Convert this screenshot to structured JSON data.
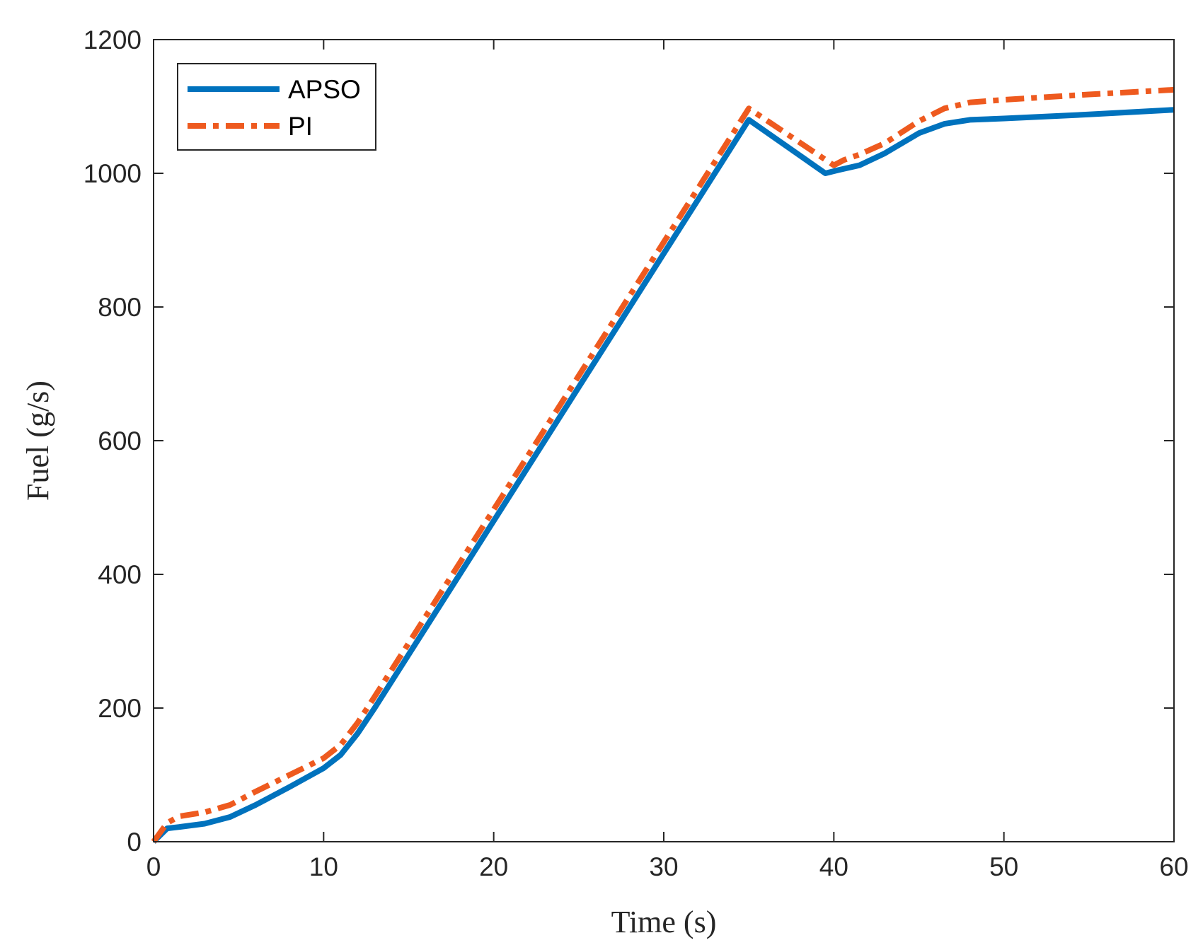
{
  "chart_data": {
    "type": "line",
    "title": "",
    "xlabel": "Time (s)",
    "ylabel": "Fuel (g/s)",
    "xlim": [
      0,
      60
    ],
    "ylim": [
      0,
      1200
    ],
    "xticks": [
      0,
      10,
      20,
      30,
      40,
      50,
      60
    ],
    "yticks": [
      0,
      200,
      400,
      600,
      800,
      1000,
      1200
    ],
    "grid": false,
    "legend_position": "top-left",
    "series": [
      {
        "name": "APSO",
        "color": "#0072BD",
        "style": "solid",
        "x": [
          0,
          0.8,
          1.5,
          3,
          4.5,
          6,
          8,
          10,
          11,
          12,
          13,
          15,
          20,
          25,
          30,
          35,
          39.5,
          40.3,
          41.5,
          43,
          45,
          46.5,
          48,
          49,
          50,
          55,
          60
        ],
        "y": [
          0,
          20,
          22,
          27,
          37,
          55,
          82,
          110,
          130,
          162,
          200,
          280,
          480,
          680,
          880,
          1080,
          1000,
          1005,
          1012,
          1030,
          1060,
          1074,
          1080,
          1081,
          1082,
          1088,
          1095
        ]
      },
      {
        "name": "PI",
        "color": "#EE5A1F",
        "style": "dashdot",
        "x": [
          0,
          0.8,
          1.5,
          3,
          4.5,
          6,
          8,
          10,
          11,
          12,
          13,
          15,
          20,
          25,
          30,
          35,
          40,
          40.6,
          41.5,
          43,
          45,
          46.5,
          48,
          49,
          50,
          55,
          60
        ],
        "y": [
          0,
          28,
          38,
          44,
          55,
          75,
          100,
          125,
          145,
          178,
          217,
          297,
          497,
          697,
          897,
          1097,
          1012,
          1020,
          1028,
          1045,
          1078,
          1097,
          1106,
          1108,
          1110,
          1118,
          1125
        ]
      }
    ]
  }
}
